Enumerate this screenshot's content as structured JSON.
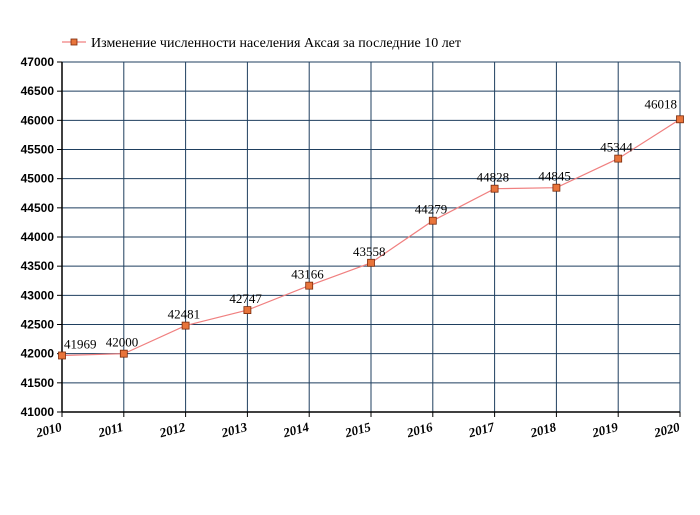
{
  "chart_data": {
    "type": "line",
    "title": "",
    "xlabel": "",
    "ylabel": "",
    "x": [
      "2010",
      "2011",
      "2012",
      "2013",
      "2014",
      "2015",
      "2016",
      "2017",
      "2018",
      "2019",
      "2020"
    ],
    "series": [
      {
        "name": "Изменение численности населения Аксая за последние 10 лет",
        "values": [
          41969,
          42000,
          42481,
          42747,
          43166,
          43558,
          44279,
          44828,
          44845,
          45344,
          46018
        ],
        "line_color": "#f08080",
        "marker_color": "#e8743b"
      }
    ],
    "ylim": [
      41000,
      47000
    ],
    "y_ticks": [
      "41000",
      "41500",
      "42000",
      "42500",
      "43000",
      "43500",
      "44000",
      "44500",
      "45000",
      "45500",
      "46000",
      "46500",
      "47000"
    ],
    "grid": true,
    "legend_position": "top-left",
    "data_labels": [
      "41969",
      "42000",
      "42481",
      "42747",
      "43166",
      "43558",
      "44279",
      "44828",
      "44845",
      "45344",
      "46018"
    ]
  }
}
